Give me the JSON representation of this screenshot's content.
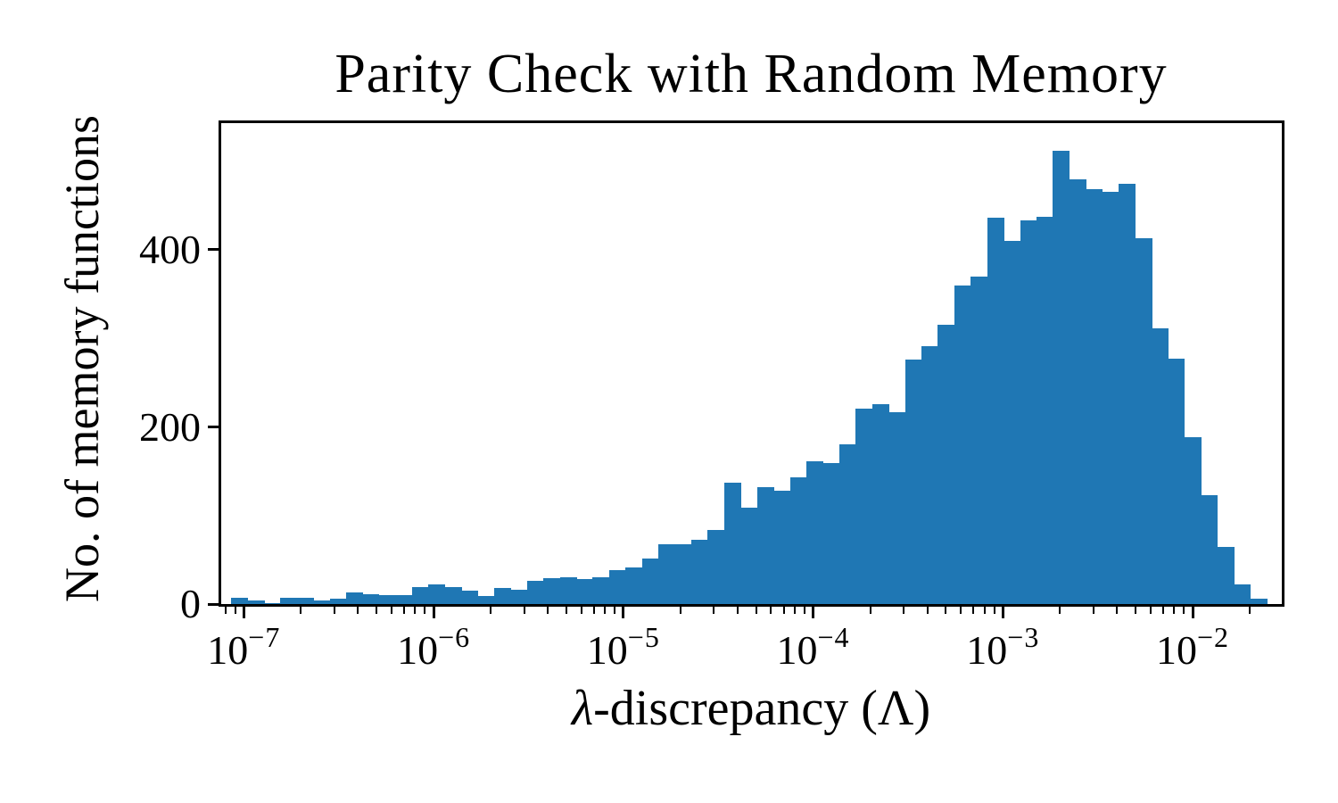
{
  "figure": {
    "title": "Parity Check with Random Memory",
    "xlabel_lambda": "λ",
    "xlabel_rest": "-discrepancy (Λ)",
    "ylabel": "No. of memory functions",
    "colors": {
      "bar": "#1f77b4",
      "axis": "#000000",
      "background": "#ffffff"
    }
  },
  "chart_data": {
    "type": "bar",
    "subtype": "histogram",
    "title": "Parity Check with Random Memory",
    "xlabel": "λ-discrepancy (Λ)",
    "ylabel": "No. of memory functions",
    "x_scale": "log10",
    "xlim_log10": [
      -7.119,
      -1.53
    ],
    "ylim": [
      0,
      546
    ],
    "grid": false,
    "legend": null,
    "first_bin_left_log10": -7.067,
    "bin_width_log10": 0.08662,
    "counts": [
      7,
      4,
      1,
      7,
      7,
      4,
      6,
      13,
      11,
      10,
      10,
      19,
      22,
      19,
      15,
      9,
      18,
      16,
      26,
      29,
      30,
      28,
      30,
      38,
      41,
      51,
      68,
      67,
      73,
      84,
      137,
      109,
      132,
      128,
      143,
      161,
      159,
      180,
      221,
      226,
      217,
      276,
      291,
      315,
      360,
      370,
      436,
      410,
      433,
      437,
      512,
      480,
      468,
      465,
      474,
      413,
      311,
      277,
      188,
      123,
      64,
      22,
      6
    ],
    "x_major_ticks": [
      {
        "exponent": -7,
        "base": "10",
        "exp_label": "−7"
      },
      {
        "exponent": -6,
        "base": "10",
        "exp_label": "−6"
      },
      {
        "exponent": -5,
        "base": "10",
        "exp_label": "−5"
      },
      {
        "exponent": -4,
        "base": "10",
        "exp_label": "−4"
      },
      {
        "exponent": -3,
        "base": "10",
        "exp_label": "−3"
      },
      {
        "exponent": -2,
        "base": "10",
        "exp_label": "−2"
      }
    ],
    "x_minor_decades": [
      -8,
      -7,
      -6,
      -5,
      -4,
      -3,
      -2
    ],
    "x_minor_multiples": [
      2,
      3,
      4,
      5,
      6,
      7,
      8,
      9
    ],
    "y_ticks": [
      {
        "value": 0,
        "label": "0"
      },
      {
        "value": 200,
        "label": "200"
      },
      {
        "value": 400,
        "label": "400"
      }
    ]
  }
}
